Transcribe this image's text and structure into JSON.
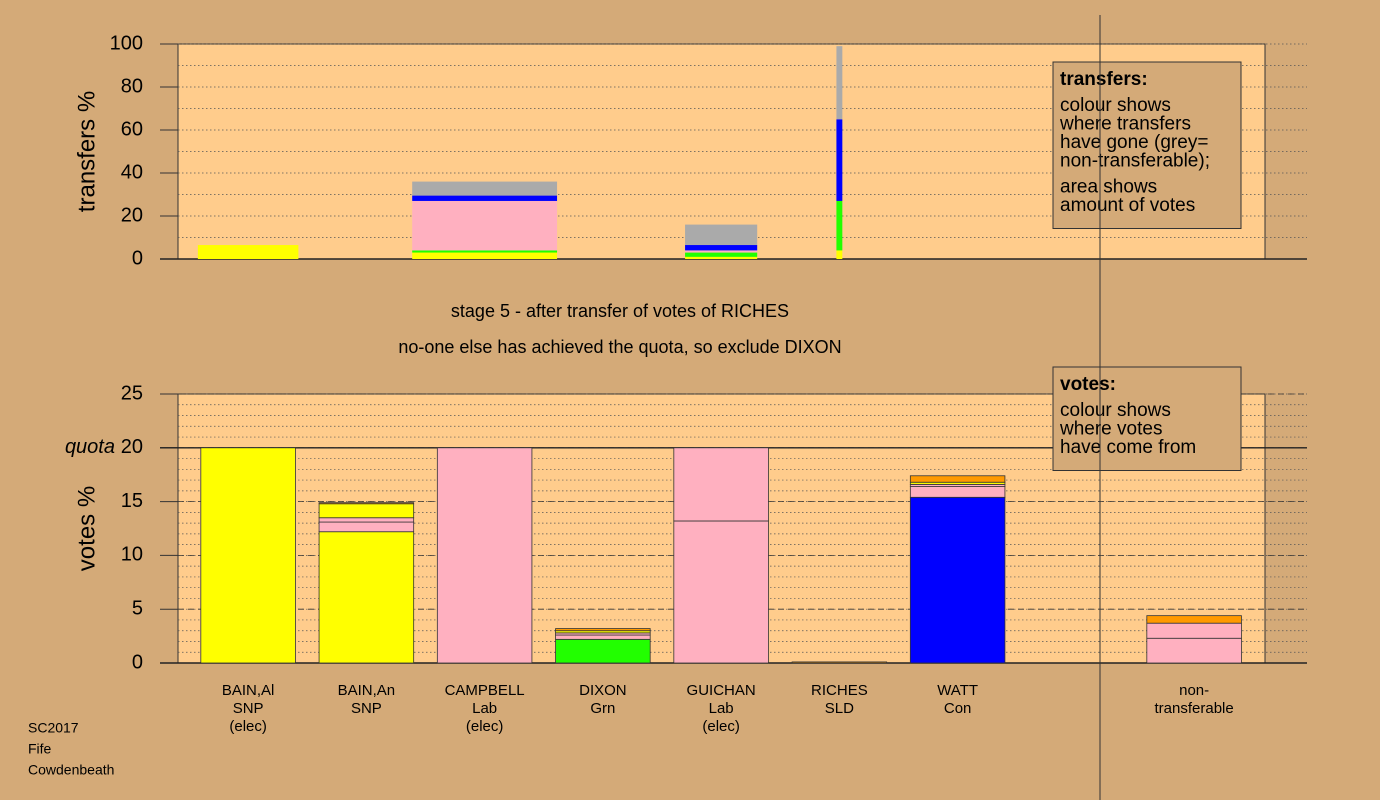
{
  "footer": [
    "SC2017",
    "Fife",
    "Cowdenbeath"
  ],
  "chart_data": [
    {
      "type": "variable_width_bar",
      "ylabel": "transfers %",
      "ylim": [
        0,
        100
      ],
      "yticks": [
        0,
        20,
        40,
        60,
        80,
        100
      ],
      "minor_step": 10,
      "amounts": [
        1.7,
        null,
        2.45,
        null,
        1.22,
        0.1,
        null,
        null,
        null
      ],
      "series": [
        {
          "color": "#ffff00",
          "values": [
            6.5,
            null,
            3,
            null,
            1,
            4,
            null,
            null,
            null
          ]
        },
        {
          "color": "#22ff00",
          "values": [
            null,
            null,
            1,
            null,
            2,
            23,
            null,
            null,
            null
          ]
        },
        {
          "color": "#ffb0c0",
          "values": [
            null,
            null,
            23,
            null,
            1,
            null,
            null,
            null,
            null
          ]
        },
        {
          "color": "#0000ff",
          "values": [
            null,
            null,
            2.5,
            null,
            2.5,
            38,
            null,
            null,
            null
          ]
        },
        {
          "color": "#aaaaaa",
          "values": [
            null,
            null,
            6.5,
            null,
            9.5,
            34,
            null,
            null,
            null
          ]
        }
      ],
      "legend": {
        "title": "transfers:",
        "paragraphs": [
          [
            "colour shows",
            "where transfers",
            "have gone (grey=",
            "non-transferable);"
          ],
          [
            "area shows",
            "amount of votes"
          ]
        ]
      }
    },
    {
      "type": "stacked_bar",
      "subtitle": [
        "stage 5 - after transfer of votes of RICHES",
        "no-one else has achieved the quota, so exclude DIXON"
      ],
      "ylabel": "votes %",
      "ylim": [
        0,
        25
      ],
      "yticks": [
        0,
        5,
        10,
        15,
        20,
        25
      ],
      "minor_step": 1,
      "quota": {
        "label": "quota",
        "value": 20
      },
      "categories": [
        [
          "BAIN,Al",
          "SNP",
          "(elec)"
        ],
        [
          "BAIN,An",
          "SNP"
        ],
        [
          "CAMPBELL",
          "Lab",
          "(elec)"
        ],
        [
          "DIXON",
          "Grn"
        ],
        [
          "GUICHAN",
          "Lab",
          "(elec)"
        ],
        [
          "RICHES",
          "SLD"
        ],
        [
          "WATT",
          "Con"
        ],
        null,
        [
          "non-",
          "transferable"
        ]
      ],
      "segments": [
        [
          {
            "color": "#ffff00",
            "value": 20
          }
        ],
        [
          {
            "color": "#ffff00",
            "value": 12.2
          },
          {
            "color": "#ffb0c0",
            "value": 0.9
          },
          {
            "color": "#ffb0c0",
            "value": 0.4
          },
          {
            "color": "#ffff00",
            "value": 1.3
          },
          {
            "color": "#ff9900",
            "value": 0.1
          }
        ],
        [
          {
            "color": "#ffb0c0",
            "value": 20
          }
        ],
        [
          {
            "color": "#22ff00",
            "value": 2.2
          },
          {
            "color": "#ffb0c0",
            "value": 0.4
          },
          {
            "color": "#ffb0c0",
            "value": 0.2
          },
          {
            "color": "#ffff00",
            "value": 0.2
          },
          {
            "color": "#ff9900",
            "value": 0.2
          }
        ],
        [
          {
            "color": "#ffb0c0",
            "value": 13.2
          },
          {
            "color": "#ffb0c0",
            "value": 6.8
          }
        ],
        [
          {
            "color": "#ff9900",
            "value": 0.1
          }
        ],
        [
          {
            "color": "#0000ff",
            "value": 15.4
          },
          {
            "color": "#ffb0c0",
            "value": 1.0
          },
          {
            "color": "#ffb0c0",
            "value": 0.2
          },
          {
            "color": "#ffff00",
            "value": 0.2
          },
          {
            "color": "#ff9900",
            "value": 0.6
          }
        ],
        [],
        [
          {
            "color": "#ffb0c0",
            "value": 2.3
          },
          {
            "color": "#ffb0c0",
            "value": 1.4
          },
          {
            "color": "#ff9900",
            "value": 0.7
          }
        ]
      ],
      "legend": {
        "title": "votes:",
        "paragraphs": [
          [
            "colour shows",
            "where votes",
            "have come from"
          ]
        ]
      }
    }
  ]
}
